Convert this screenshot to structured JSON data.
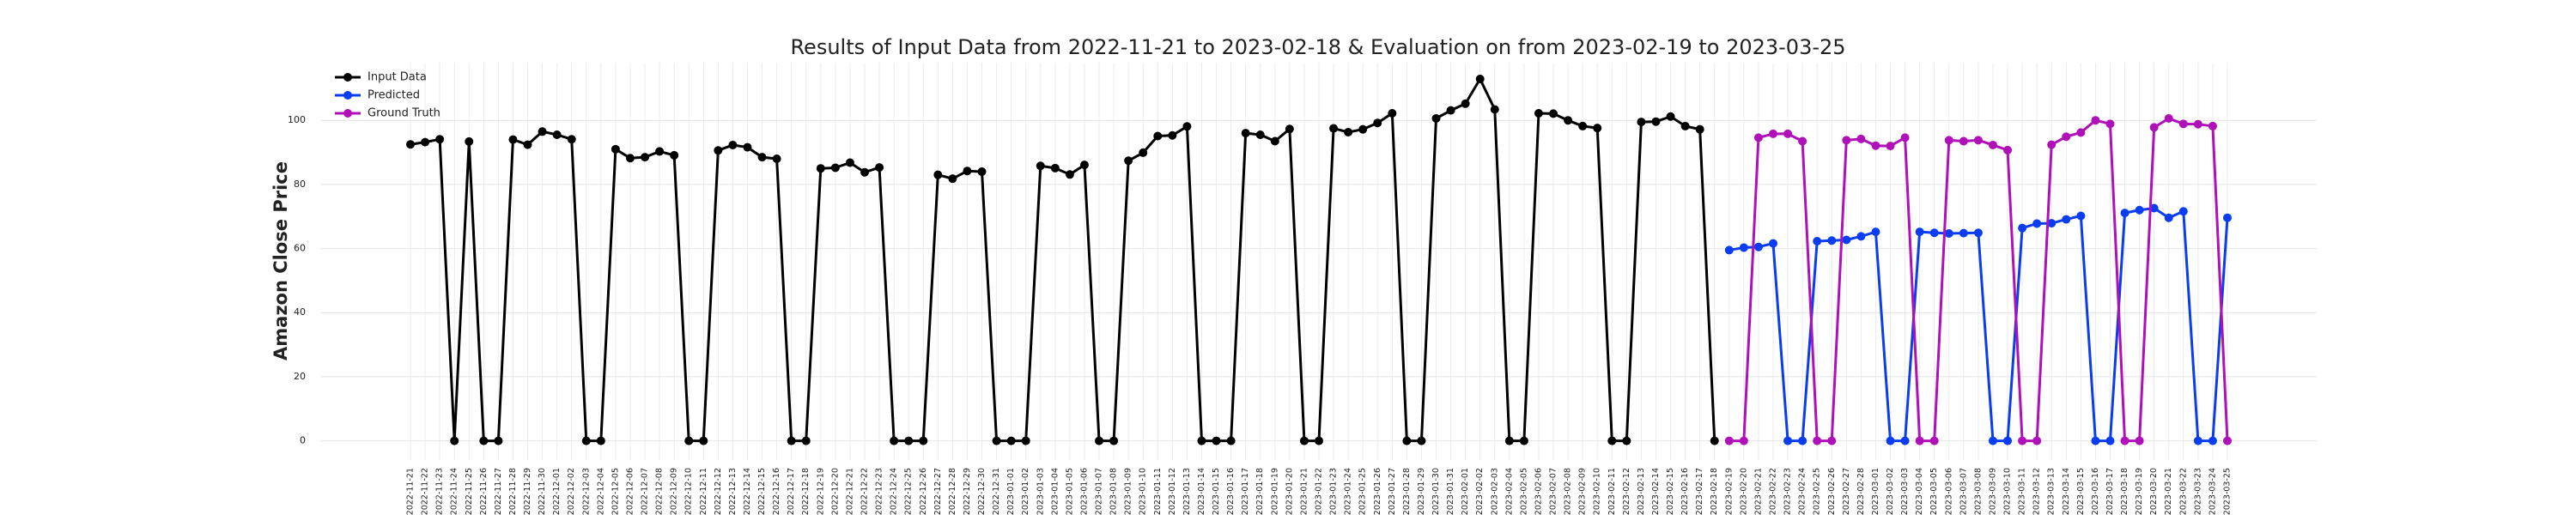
{
  "chart_data": {
    "type": "line",
    "title": "Results of Input Data from 2022-11-21 to 2023-02-18 & Evaluation on from 2023-02-19 to 2023-03-25",
    "ylabel": "Amazon Close Price",
    "categories": [
      "2022-11-21",
      "2022-11-22",
      "2022-11-23",
      "2022-11-24",
      "2022-11-25",
      "2022-11-26",
      "2022-11-27",
      "2022-11-28",
      "2022-11-29",
      "2022-11-30",
      "2022-12-01",
      "2022-12-02",
      "2022-12-03",
      "2022-12-04",
      "2022-12-05",
      "2022-12-06",
      "2022-12-07",
      "2022-12-08",
      "2022-12-09",
      "2022-12-10",
      "2022-12-11",
      "2022-12-12",
      "2022-12-13",
      "2022-12-14",
      "2022-12-15",
      "2022-12-16",
      "2022-12-17",
      "2022-12-18",
      "2022-12-19",
      "2022-12-20",
      "2022-12-21",
      "2022-12-22",
      "2022-12-23",
      "2022-12-24",
      "2022-12-25",
      "2022-12-26",
      "2022-12-27",
      "2022-12-28",
      "2022-12-29",
      "2022-12-30",
      "2022-12-31",
      "2023-01-01",
      "2023-01-02",
      "2023-01-03",
      "2023-01-04",
      "2023-01-05",
      "2023-01-06",
      "2023-01-07",
      "2023-01-08",
      "2023-01-09",
      "2023-01-10",
      "2023-01-11",
      "2023-01-12",
      "2023-01-13",
      "2023-01-14",
      "2023-01-15",
      "2023-01-16",
      "2023-01-17",
      "2023-01-18",
      "2023-01-19",
      "2023-01-20",
      "2023-01-21",
      "2023-01-22",
      "2023-01-23",
      "2023-01-24",
      "2023-01-25",
      "2023-01-26",
      "2023-01-27",
      "2023-01-28",
      "2023-01-29",
      "2023-01-30",
      "2023-01-31",
      "2023-02-01",
      "2023-02-02",
      "2023-02-03",
      "2023-02-04",
      "2023-02-05",
      "2023-02-06",
      "2023-02-07",
      "2023-02-08",
      "2023-02-09",
      "2023-02-10",
      "2023-02-11",
      "2023-02-12",
      "2023-02-13",
      "2023-02-14",
      "2023-02-15",
      "2023-02-16",
      "2023-02-17",
      "2023-02-18",
      "2023-02-19",
      "2023-02-20",
      "2023-02-21",
      "2023-02-22",
      "2023-02-23",
      "2023-02-24",
      "2023-02-25",
      "2023-02-26",
      "2023-02-27",
      "2023-02-28",
      "2023-03-01",
      "2023-03-02",
      "2023-03-03",
      "2023-03-04",
      "2023-03-05",
      "2023-03-06",
      "2023-03-07",
      "2023-03-08",
      "2023-03-09",
      "2023-03-10",
      "2023-03-11",
      "2023-03-12",
      "2023-03-13",
      "2023-03-14",
      "2023-03-15",
      "2023-03-16",
      "2023-03-17",
      "2023-03-18",
      "2023-03-19",
      "2023-03-20",
      "2023-03-21",
      "2023-03-22",
      "2023-03-23",
      "2023-03-24",
      "2023-03-25"
    ],
    "series": [
      {
        "name": "Input Data",
        "color": "#000000",
        "values": [
          92.5,
          93.2,
          94.1,
          0,
          93.4,
          0,
          0,
          94.0,
          92.4,
          96.5,
          95.5,
          94.1,
          0,
          0,
          91.0,
          88.2,
          88.5,
          90.3,
          89.1,
          0,
          0,
          90.6,
          92.3,
          91.6,
          88.5,
          88.0,
          0,
          0,
          85.0,
          85.2,
          86.8,
          83.8,
          85.3,
          0,
          0,
          0,
          83.0,
          81.8,
          84.2,
          84.0,
          0,
          0,
          0,
          85.8,
          85.1,
          83.1,
          86.1,
          0,
          0,
          87.4,
          89.9,
          95.1,
          95.3,
          98.1,
          0,
          0,
          0,
          96.0,
          95.5,
          93.5,
          97.3,
          0,
          0,
          97.5,
          96.3,
          97.2,
          99.2,
          102.2,
          0,
          0,
          100.6,
          103.1,
          105.2,
          112.9,
          103.4,
          0,
          0,
          102.2,
          102.1,
          100.0,
          98.2,
          97.6,
          0,
          0,
          99.5,
          99.6,
          101.2,
          98.2,
          97.2,
          0,
          null,
          null,
          null,
          null,
          null,
          null,
          null,
          null,
          null,
          null,
          null,
          null,
          null,
          null,
          null,
          null,
          null,
          null,
          null,
          null,
          null,
          null,
          null,
          null,
          null,
          null,
          null,
          null,
          null,
          null,
          null,
          null,
          null,
          null,
          null
        ]
      },
      {
        "name": "Predicted",
        "color": "#0a3cf0",
        "values": [
          null,
          null,
          null,
          null,
          null,
          null,
          null,
          null,
          null,
          null,
          null,
          null,
          null,
          null,
          null,
          null,
          null,
          null,
          null,
          null,
          null,
          null,
          null,
          null,
          null,
          null,
          null,
          null,
          null,
          null,
          null,
          null,
          null,
          null,
          null,
          null,
          null,
          null,
          null,
          null,
          null,
          null,
          null,
          null,
          null,
          null,
          null,
          null,
          null,
          null,
          null,
          null,
          null,
          null,
          null,
          null,
          null,
          null,
          null,
          null,
          null,
          null,
          null,
          null,
          null,
          null,
          null,
          null,
          null,
          null,
          null,
          null,
          null,
          null,
          null,
          null,
          null,
          null,
          null,
          null,
          null,
          null,
          null,
          null,
          null,
          null,
          null,
          null,
          null,
          null,
          59.5,
          60.3,
          60.5,
          61.6,
          0,
          0,
          62.3,
          62.5,
          62.7,
          63.8,
          65.2,
          0,
          0,
          65.2,
          64.9,
          64.7,
          64.8,
          64.9,
          0,
          0,
          66.4,
          67.8,
          67.9,
          69.1,
          70.2,
          0,
          0,
          71.1,
          72.0,
          72.6,
          69.6,
          71.6,
          0,
          0,
          69.6
        ]
      },
      {
        "name": "Ground Truth",
        "color": "#b010b8",
        "values": [
          null,
          null,
          null,
          null,
          null,
          null,
          null,
          null,
          null,
          null,
          null,
          null,
          null,
          null,
          null,
          null,
          null,
          null,
          null,
          null,
          null,
          null,
          null,
          null,
          null,
          null,
          null,
          null,
          null,
          null,
          null,
          null,
          null,
          null,
          null,
          null,
          null,
          null,
          null,
          null,
          null,
          null,
          null,
          null,
          null,
          null,
          null,
          null,
          null,
          null,
          null,
          null,
          null,
          null,
          null,
          null,
          null,
          null,
          null,
          null,
          null,
          null,
          null,
          null,
          null,
          null,
          null,
          null,
          null,
          null,
          null,
          null,
          null,
          null,
          null,
          null,
          null,
          null,
          null,
          null,
          null,
          null,
          null,
          null,
          null,
          null,
          null,
          null,
          null,
          null,
          0,
          0,
          94.6,
          95.8,
          95.8,
          93.5,
          0,
          0,
          93.8,
          94.2,
          92.1,
          92.0,
          94.6,
          0,
          0,
          93.8,
          93.5,
          93.8,
          92.3,
          90.7,
          0,
          0,
          92.4,
          94.9,
          96.2,
          100.0,
          98.9,
          0,
          0,
          97.8,
          100.6,
          98.9,
          98.8,
          98.2,
          0
        ]
      }
    ],
    "ylim": [
      -6,
      118
    ],
    "yticks": [
      0,
      20,
      40,
      60,
      80,
      100
    ],
    "grid": true,
    "legend": "upper left"
  }
}
